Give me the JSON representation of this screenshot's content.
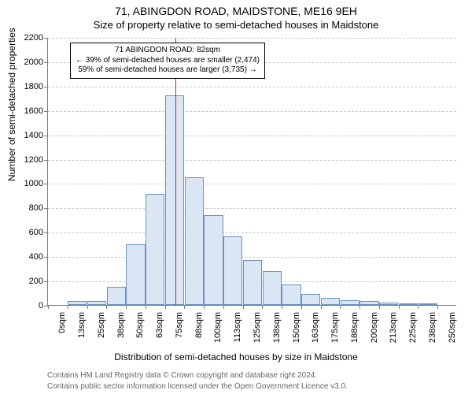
{
  "title_main": "71, ABINGDON ROAD, MAIDSTONE, ME16 9EH",
  "title_sub": "Size of property relative to semi-detached houses in Maidstone",
  "ylabel": "Number of semi-detached properties",
  "xlabel": "Distribution of semi-detached houses by size in Maidstone",
  "footer1": "Contains HM Land Registry data © Crown copyright and database right 2024.",
  "footer2": "Contains public sector information licensed under the Open Government Licence v3.0.",
  "chart": {
    "type": "histogram",
    "ylim": [
      0,
      2200
    ],
    "ytick_step": 200,
    "bar_fill": "#dbe6f4",
    "bar_stroke": "#6a91c4",
    "grid_color": "#c8c8c8",
    "axis_color": "#7a7a7a",
    "marker_color": "#d62020",
    "marker_x_sqm": 82,
    "bin_width_sqm": 12.5,
    "categories": [
      "0sqm",
      "13sqm",
      "25sqm",
      "38sqm",
      "50sqm",
      "63sqm",
      "75sqm",
      "88sqm",
      "100sqm",
      "113sqm",
      "125sqm",
      "138sqm",
      "150sqm",
      "163sqm",
      "175sqm",
      "188sqm",
      "200sqm",
      "213sqm",
      "225sqm",
      "238sqm",
      "250sqm"
    ],
    "values": [
      0,
      30,
      30,
      150,
      500,
      910,
      1720,
      1050,
      740,
      560,
      370,
      280,
      170,
      90,
      60,
      40,
      30,
      20,
      10,
      10,
      0
    ]
  },
  "callout": {
    "line1": "71 ABINGDON ROAD: 82sqm",
    "line2": "← 39% of semi-detached houses are smaller (2,474)",
    "line3": "59% of semi-detached houses are larger (3,735) →"
  }
}
